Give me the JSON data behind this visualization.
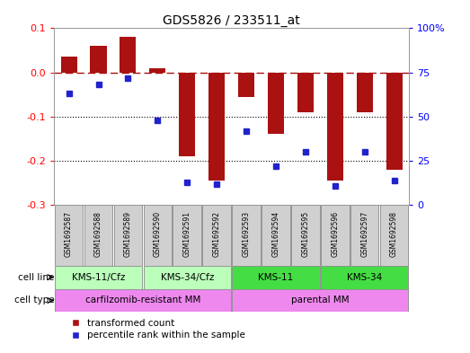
{
  "title": "GDS5826 / 233511_at",
  "samples": [
    "GSM1692587",
    "GSM1692588",
    "GSM1692589",
    "GSM1692590",
    "GSM1692591",
    "GSM1692592",
    "GSM1692593",
    "GSM1692594",
    "GSM1692595",
    "GSM1692596",
    "GSM1692597",
    "GSM1692598"
  ],
  "bar_values": [
    0.035,
    0.06,
    0.08,
    0.01,
    -0.19,
    -0.245,
    -0.055,
    -0.14,
    -0.09,
    -0.245,
    -0.09,
    -0.22
  ],
  "percentile_values": [
    63,
    68,
    72,
    48,
    13,
    12,
    42,
    22,
    30,
    11,
    30,
    14
  ],
  "bar_color": "#aa1111",
  "dot_color": "#2222cc",
  "ylim_left": [
    -0.3,
    0.1
  ],
  "ylim_right": [
    0,
    100
  ],
  "yticks_left": [
    0.1,
    0.0,
    -0.1,
    -0.2,
    -0.3
  ],
  "yticks_right": [
    100,
    75,
    50,
    25,
    0
  ],
  "dotted_lines": [
    -0.1,
    -0.2
  ],
  "cell_line_groups": [
    {
      "label": "KMS-11/Cfz",
      "start": 0,
      "end": 3,
      "color": "#bbffbb"
    },
    {
      "label": "KMS-34/Cfz",
      "start": 3,
      "end": 6,
      "color": "#bbffbb"
    },
    {
      "label": "KMS-11",
      "start": 6,
      "end": 9,
      "color": "#44dd44"
    },
    {
      "label": "KMS-34",
      "start": 9,
      "end": 12,
      "color": "#44dd44"
    }
  ],
  "cell_type_groups": [
    {
      "label": "carfilzomib-resistant MM",
      "start": 0,
      "end": 6,
      "color": "#ee88ee"
    },
    {
      "label": "parental MM",
      "start": 6,
      "end": 12,
      "color": "#ee88ee"
    }
  ],
  "cell_line_row_label": "cell line",
  "cell_type_row_label": "cell type",
  "legend_bar_label": "transformed count",
  "legend_dot_label": "percentile rank within the sample",
  "background_color": "#ffffff",
  "sample_box_color": "#d0d0d0"
}
